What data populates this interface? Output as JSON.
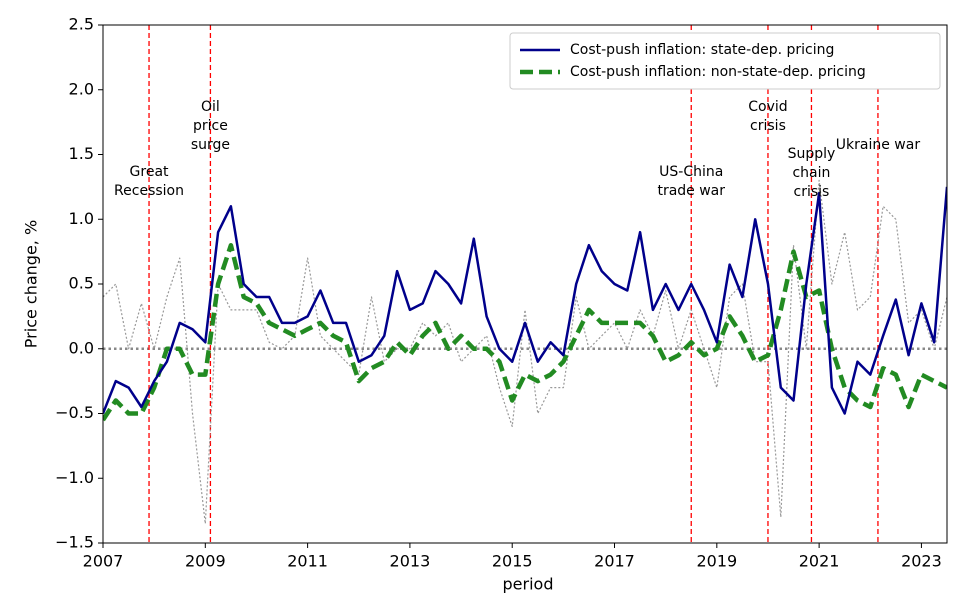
{
  "chart_data": {
    "type": "line",
    "xlabel": "period",
    "ylabel": "Price change, %",
    "xlim": [
      2007,
      2023.5
    ],
    "ylim": [
      -1.5,
      2.5
    ],
    "xticks": [
      2007,
      2009,
      2011,
      2013,
      2015,
      2017,
      2019,
      2021,
      2023
    ],
    "yticks": [
      {
        "value": -1.5,
        "label": "−1.5"
      },
      {
        "value": -1.0,
        "label": "−1.0"
      },
      {
        "value": -0.5,
        "label": "−0.5"
      },
      {
        "value": 0,
        "label": "0.0"
      },
      0.5,
      {
        "value": 1.0,
        "label": "1.0"
      },
      1.5,
      {
        "value": 2.0,
        "label": "2.0"
      },
      2.5
    ],
    "legend": "upper right",
    "zero_line": {
      "value": 0,
      "color": "#888888"
    },
    "x": [
      2007,
      2007.25,
      2007.5,
      2007.75,
      2008,
      2008.25,
      2008.5,
      2008.75,
      2009,
      2009.25,
      2009.5,
      2009.75,
      2010,
      2010.25,
      2010.5,
      2010.75,
      2011,
      2011.25,
      2011.5,
      2011.75,
      2012,
      2012.25,
      2012.5,
      2012.75,
      2013,
      2013.25,
      2013.5,
      2013.75,
      2014,
      2014.25,
      2014.5,
      2014.75,
      2015,
      2015.25,
      2015.5,
      2015.75,
      2016,
      2016.25,
      2016.5,
      2016.75,
      2017,
      2017.25,
      2017.5,
      2017.75,
      2018,
      2018.25,
      2018.5,
      2018.75,
      2019,
      2019.25,
      2019.5,
      2019.75,
      2020,
      2020.25,
      2020.5,
      2020.75,
      2021,
      2021.25,
      2021.5,
      2021.75,
      2022,
      2022.25,
      2022.5,
      2022.75,
      2023,
      2023.25,
      2023.5
    ],
    "series": [
      {
        "name": "Cost-push inflation: state-dep. pricing",
        "color": "#00008b",
        "style": "solid",
        "values": [
          -0.5,
          -0.25,
          -0.3,
          -0.45,
          -0.25,
          -0.1,
          0.2,
          0.15,
          0.05,
          0.9,
          1.1,
          0.5,
          0.4,
          0.4,
          0.2,
          0.2,
          0.25,
          0.45,
          0.2,
          0.2,
          -0.1,
          -0.05,
          0.1,
          0.6,
          0.3,
          0.35,
          0.6,
          0.5,
          0.35,
          0.85,
          0.25,
          0.0,
          -0.1,
          0.2,
          -0.1,
          0.05,
          -0.05,
          0.5,
          0.8,
          0.6,
          0.5,
          0.45,
          0.9,
          0.3,
          0.5,
          0.3,
          0.5,
          0.3,
          0.05,
          0.65,
          0.4,
          1.0,
          0.5,
          -0.3,
          -0.4,
          0.5,
          1.2,
          -0.3,
          -0.5,
          -0.1,
          -0.2,
          0.1,
          0.38,
          -0.05,
          0.35,
          0.05,
          1.25
        ]
      },
      {
        "name": "Cost-push inflation: non-state-dep. pricing",
        "color": "#228b22",
        "style": "dashed",
        "values": [
          -0.55,
          -0.4,
          -0.5,
          -0.5,
          -0.3,
          0.0,
          0.0,
          -0.2,
          -0.2,
          0.5,
          0.8,
          0.4,
          0.35,
          0.2,
          0.15,
          0.1,
          0.15,
          0.2,
          0.1,
          0.05,
          -0.25,
          -0.15,
          -0.1,
          0.05,
          -0.05,
          0.1,
          0.2,
          0.0,
          0.1,
          0.0,
          0.0,
          -0.1,
          -0.4,
          -0.2,
          -0.25,
          -0.2,
          -0.1,
          0.1,
          0.3,
          0.2,
          0.2,
          0.2,
          0.2,
          0.1,
          -0.1,
          -0.05,
          0.05,
          -0.05,
          0.0,
          0.25,
          0.1,
          -0.1,
          -0.05,
          0.3,
          0.75,
          0.4,
          0.45,
          0.0,
          -0.3,
          -0.4,
          -0.45,
          -0.15,
          -0.2,
          -0.45,
          -0.2,
          -0.25,
          -0.3
        ]
      },
      {
        "color": "#999999",
        "style": "dotted",
        "values": [
          0.4,
          0.5,
          0.0,
          0.35,
          0.0,
          0.4,
          0.7,
          -0.5,
          -1.35,
          0.5,
          0.3,
          0.3,
          0.3,
          0.05,
          0.0,
          0.1,
          0.7,
          0.1,
          0.0,
          -0.1,
          -0.2,
          0.4,
          -0.1,
          0.0,
          0.0,
          0.2,
          0.1,
          0.2,
          -0.1,
          0.0,
          0.1,
          -0.3,
          -0.6,
          0.3,
          -0.5,
          -0.3,
          -0.3,
          0.4,
          0.0,
          0.1,
          0.2,
          0.0,
          0.3,
          0.1,
          0.45,
          0.0,
          0.3,
          0.0,
          -0.3,
          0.4,
          0.5,
          -0.1,
          -0.1,
          -1.3,
          0.8,
          0.0,
          1.3,
          0.5,
          0.9,
          0.3,
          0.4,
          1.1,
          1.0,
          0.2,
          0.3,
          0.0,
          0.4
        ]
      }
    ],
    "events": [
      {
        "x": 2007.9,
        "text": [
          "Great",
          "Recession"
        ]
      },
      {
        "x": 2009.1,
        "text": [
          "Oil",
          "price",
          "surge"
        ]
      },
      {
        "x": 2018.5,
        "text": [
          "US-China",
          "trade war"
        ]
      },
      {
        "x": 2020.0,
        "text": [
          "Covid",
          "crisis"
        ]
      },
      {
        "x": 2020.85,
        "text": [
          "Supply",
          "chain",
          "crisis"
        ]
      },
      {
        "x": 2022.15,
        "text": [
          "Ukraine war"
        ]
      }
    ],
    "event_color": "#ff0000"
  }
}
